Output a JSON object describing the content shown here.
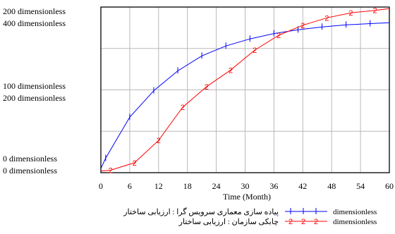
{
  "chart_data": {
    "type": "line",
    "xlabel": "Time (Month)",
    "x_ticks": [
      "0",
      "6",
      "12",
      "18",
      "24",
      "30",
      "36",
      "42",
      "48",
      "54",
      "60"
    ],
    "xlim": [
      0,
      60
    ],
    "y_axis_labels": {
      "top": [
        "200 dimensionless",
        "400 dimensionless"
      ],
      "middle": [
        "100 dimensionless",
        "200 dimensionless"
      ],
      "bottom": [
        "0 dimensionless",
        "0 dimensionless"
      ]
    },
    "axes": [
      {
        "series": 1,
        "ylim": [
          0,
          400
        ]
      },
      {
        "series": 2,
        "ylim": [
          0,
          200
        ]
      }
    ],
    "series": [
      {
        "marker": "1",
        "color": "#0000ff",
        "x": [
          0,
          1,
          6,
          11,
          16,
          21,
          26,
          31,
          36,
          41,
          46,
          51,
          56,
          60
        ],
        "y": [
          10,
          35,
          134,
          198,
          246,
          282,
          306,
          323,
          336,
          345,
          352,
          357,
          360,
          362
        ]
      },
      {
        "marker": "2",
        "color": "#ff0000",
        "x": [
          0,
          2,
          7,
          12,
          17,
          22,
          27,
          32,
          37,
          42,
          47,
          52,
          57,
          60
        ],
        "y": [
          2,
          3,
          12,
          39,
          79,
          104,
          124,
          148,
          166,
          178,
          187,
          193,
          196,
          198
        ]
      }
    ],
    "legend": [
      {
        "label": "پیاده سازی معماری سرویس گرا : ارزیابی ساختار",
        "unit": "dimensionless",
        "marker": "1",
        "color": "#0000ff"
      },
      {
        "label": "چابکی سازمان : ارزیابی ساختار",
        "unit": "dimensionless",
        "marker": "2",
        "color": "#ff0000"
      }
    ],
    "legend_position": "bottom",
    "grid": true
  }
}
